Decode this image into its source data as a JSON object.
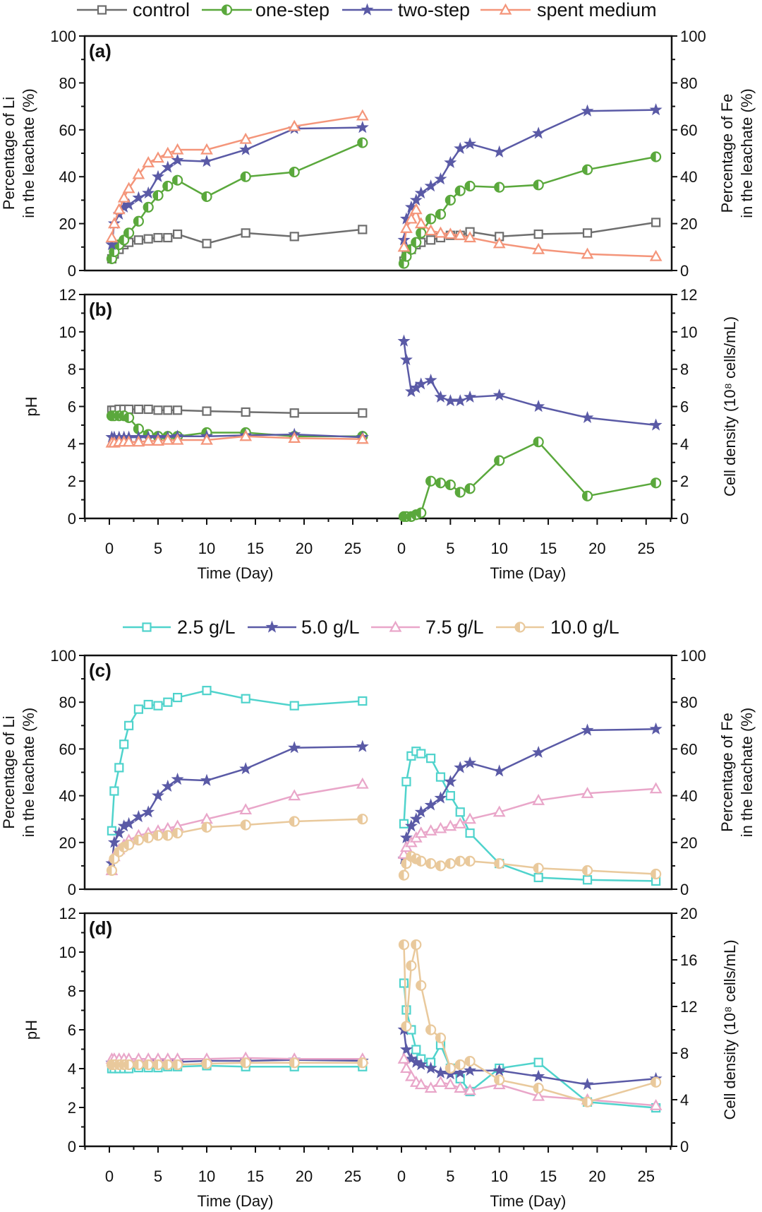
{
  "legends": [
    {
      "id": "legend-treatment",
      "items": [
        {
          "name": "control",
          "color": "#6e6e6e",
          "marker": "square"
        },
        {
          "name": "one-step",
          "color": "#5aa83c",
          "marker": "half-circle"
        },
        {
          "name": "two-step",
          "color": "#5a5aa6",
          "marker": "star"
        },
        {
          "name": "spent medium",
          "color": "#f4957a",
          "marker": "triangle"
        }
      ]
    },
    {
      "id": "legend-pulp-density",
      "items": [
        {
          "name": "2.5 g/L",
          "color": "#4fd3cc",
          "marker": "square"
        },
        {
          "name": "5.0 g/L",
          "color": "#5a5aa6",
          "marker": "star"
        },
        {
          "name": "7.5 g/L",
          "color": "#e9a6c9",
          "marker": "triangle"
        },
        {
          "name": "10.0 g/L",
          "color": "#e9c99c",
          "marker": "half-circle"
        }
      ]
    }
  ],
  "chart_data": [
    {
      "panel": "(a)",
      "type": "line",
      "legend": 0,
      "x": [
        0.25,
        0.5,
        1,
        1.5,
        2,
        3,
        4,
        5,
        6,
        7,
        10,
        14,
        19,
        26
      ],
      "xlabel": "",
      "xticks": [],
      "ylabel_left": [
        "Percentage of  Li",
        "in the leachate (%)"
      ],
      "ylabel_right": [
        "Percentage of  Fe",
        "in the leachate (%)"
      ],
      "ylim_left": [
        0,
        100
      ],
      "yticks_left": [
        0,
        20,
        40,
        60,
        80,
        100
      ],
      "ylim_right": [
        0,
        100
      ],
      "yticks_right": [
        0,
        20,
        40,
        60,
        80,
        100
      ],
      "left_series": [
        {
          "name": "control",
          "values": [
            5,
            7,
            9,
            11,
            12,
            13,
            13.5,
            14,
            14,
            15.5,
            11.5,
            16,
            14.5,
            17.5
          ]
        },
        {
          "name": "one-step",
          "values": [
            5,
            8,
            11,
            13,
            16,
            21,
            27,
            32,
            36,
            38.5,
            31.5,
            40,
            42,
            54.5
          ]
        },
        {
          "name": "two-step",
          "values": [
            11,
            20,
            24,
            27,
            28,
            31,
            33,
            40,
            44,
            47,
            46.5,
            51.5,
            60.5,
            61
          ]
        },
        {
          "name": "spent medium",
          "values": [
            14,
            20,
            26,
            31,
            35,
            41,
            46,
            48,
            50,
            51.5,
            51.5,
            56,
            61.5,
            66
          ]
        }
      ],
      "right_series": [
        {
          "name": "control",
          "values": [
            4,
            7,
            9,
            11,
            12,
            13,
            14,
            15,
            15,
            16.5,
            14.5,
            15.5,
            16,
            20.5
          ]
        },
        {
          "name": "one-step",
          "values": [
            3,
            6,
            9,
            12,
            16,
            22,
            24,
            30,
            34,
            36,
            35.5,
            36.5,
            43,
            48.5
          ]
        },
        {
          "name": "two-step",
          "values": [
            13,
            22,
            27,
            30,
            33,
            36,
            39,
            46,
            52,
            54,
            50.5,
            58.5,
            68,
            68.5
          ]
        },
        {
          "name": "spent medium",
          "values": [
            10,
            18,
            22,
            26,
            20,
            17,
            16,
            15.5,
            15,
            14,
            11.5,
            9,
            7,
            6
          ]
        }
      ]
    },
    {
      "panel": "(b)",
      "type": "line",
      "legend": 0,
      "x": [
        0.25,
        0.5,
        1,
        1.5,
        2,
        3,
        4,
        5,
        6,
        7,
        10,
        14,
        19,
        26
      ],
      "xlabel": "Time (Day)",
      "xticks": [
        0,
        5,
        10,
        15,
        20,
        25
      ],
      "ylabel_left": [
        "pH"
      ],
      "ylabel_right": [
        "Cell density (10⁸ cells/mL)"
      ],
      "ylim_left": [
        0,
        12
      ],
      "yticks_left": [
        0,
        2,
        4,
        6,
        8,
        10,
        12
      ],
      "ylim_right": [
        0,
        12
      ],
      "yticks_right": [
        0,
        2,
        4,
        6,
        8,
        10,
        12
      ],
      "left_series": [
        {
          "name": "control",
          "values": [
            5.8,
            5.8,
            5.85,
            5.85,
            5.85,
            5.85,
            5.85,
            5.8,
            5.8,
            5.8,
            5.75,
            5.7,
            5.65,
            5.65
          ]
        },
        {
          "name": "one-step",
          "values": [
            5.5,
            5.5,
            5.5,
            5.5,
            5.4,
            4.8,
            4.5,
            4.4,
            4.4,
            4.4,
            4.6,
            4.6,
            4.4,
            4.4
          ]
        },
        {
          "name": "two-step",
          "values": [
            4.35,
            4.35,
            4.35,
            4.35,
            4.35,
            4.35,
            4.35,
            4.35,
            4.35,
            4.4,
            4.4,
            4.45,
            4.5,
            4.35
          ]
        },
        {
          "name": "spent medium",
          "values": [
            4.05,
            4.05,
            4.1,
            4.1,
            4.1,
            4.1,
            4.15,
            4.15,
            4.2,
            4.2,
            4.2,
            4.4,
            4.3,
            4.25
          ]
        }
      ],
      "right_series": [
        {
          "name": "one-step",
          "values": [
            0.1,
            0.1,
            0.1,
            0.2,
            0.3,
            2.0,
            1.9,
            1.8,
            1.4,
            1.6,
            3.1,
            4.1,
            1.2,
            1.9
          ]
        },
        {
          "name": "two-step",
          "values": [
            9.5,
            8.5,
            6.8,
            7.0,
            7.2,
            7.4,
            6.5,
            6.3,
            6.3,
            6.5,
            6.6,
            6.0,
            5.4,
            5.0
          ]
        }
      ]
    },
    {
      "panel": "(c)",
      "type": "line",
      "legend": 1,
      "x": [
        0.25,
        0.5,
        1,
        1.5,
        2,
        3,
        4,
        5,
        6,
        7,
        10,
        14,
        19,
        26
      ],
      "xlabel": "",
      "xticks": [],
      "ylabel_left": [
        "Percentage of  Li",
        "in the leachate (%)"
      ],
      "ylabel_right": [
        "Percentage of  Fe",
        "in the leachate (%)"
      ],
      "ylim_left": [
        0,
        100
      ],
      "yticks_left": [
        0,
        20,
        40,
        60,
        80,
        100
      ],
      "ylim_right": [
        0,
        100
      ],
      "yticks_right": [
        0,
        20,
        40,
        60,
        80,
        100
      ],
      "left_series": [
        {
          "name": "2.5 g/L",
          "values": [
            25,
            42,
            52,
            62,
            70,
            77,
            79,
            78.5,
            80,
            82,
            85,
            81.5,
            78.5,
            80.5
          ]
        },
        {
          "name": "5.0 g/L",
          "values": [
            11,
            20,
            24,
            27,
            28,
            31,
            33,
            40,
            44,
            47,
            46.5,
            51.5,
            60.5,
            61
          ]
        },
        {
          "name": "7.5 g/L",
          "values": [
            8,
            14,
            17,
            19,
            21,
            23,
            24,
            25,
            26,
            27,
            30,
            34,
            40,
            45
          ]
        },
        {
          "name": "10.0 g/L",
          "values": [
            8,
            13,
            16,
            18,
            19,
            21,
            22,
            23,
            23,
            24,
            26.5,
            27.5,
            29,
            30
          ]
        }
      ],
      "right_series": [
        {
          "name": "2.5 g/L",
          "values": [
            28,
            46,
            57,
            59,
            58,
            56,
            48,
            40,
            33,
            24,
            11,
            5,
            4,
            3.5
          ]
        },
        {
          "name": "5.0 g/L",
          "values": [
            13,
            22,
            27,
            30,
            33,
            36,
            39,
            46,
            52,
            54,
            50.5,
            58.5,
            68,
            68.5
          ]
        },
        {
          "name": "7.5 g/L",
          "values": [
            15,
            18,
            20,
            22,
            24,
            25,
            26,
            27,
            28,
            30,
            33,
            38,
            41,
            43
          ]
        },
        {
          "name": "10.0 g/L",
          "values": [
            6,
            11,
            14,
            13,
            12,
            11,
            10,
            11,
            12,
            12,
            11,
            9,
            8,
            6.5
          ]
        }
      ]
    },
    {
      "panel": "(d)",
      "type": "line",
      "legend": 1,
      "x": [
        0.25,
        0.5,
        1,
        1.5,
        2,
        3,
        4,
        5,
        6,
        7,
        10,
        14,
        19,
        26
      ],
      "xlabel": "Time (Day)",
      "xticks": [
        0,
        5,
        10,
        15,
        20,
        25
      ],
      "ylabel_left": [
        "pH"
      ],
      "ylabel_right": [
        "Cell density (10⁸ cells/mL)"
      ],
      "ylim_left": [
        0,
        12
      ],
      "yticks_left": [
        0,
        2,
        4,
        6,
        8,
        10,
        12
      ],
      "ylim_right": [
        0,
        20
      ],
      "yticks_right": [
        0,
        4,
        8,
        12,
        16,
        20
      ],
      "left_series": [
        {
          "name": "2.5 g/L",
          "values": [
            4.0,
            4.0,
            4.0,
            4.0,
            4.0,
            4.05,
            4.05,
            4.05,
            4.1,
            4.1,
            4.15,
            4.1,
            4.1,
            4.1
          ]
        },
        {
          "name": "5.0 g/L",
          "values": [
            4.3,
            4.3,
            4.3,
            4.3,
            4.3,
            4.3,
            4.3,
            4.35,
            4.35,
            4.35,
            4.4,
            4.4,
            4.45,
            4.4
          ]
        },
        {
          "name": "7.5 g/L",
          "values": [
            4.5,
            4.5,
            4.5,
            4.5,
            4.5,
            4.5,
            4.5,
            4.5,
            4.5,
            4.5,
            4.5,
            4.55,
            4.5,
            4.5
          ]
        },
        {
          "name": "10.0 g/L",
          "values": [
            4.2,
            4.2,
            4.2,
            4.2,
            4.2,
            4.2,
            4.2,
            4.2,
            4.2,
            4.2,
            4.25,
            4.3,
            4.3,
            4.3
          ]
        }
      ],
      "right_series": [
        {
          "name": "2.5 g/L",
          "values": [
            14,
            11.7,
            10,
            8.3,
            7.5,
            7.2,
            8.7,
            6.7,
            5.8,
            4.7,
            6.7,
            7.2,
            3.8,
            3.3
          ]
        },
        {
          "name": "5.0 g/L",
          "values": [
            10,
            8.3,
            7.5,
            7.2,
            7,
            6.7,
            6.3,
            6.2,
            6.3,
            6.5,
            6.5,
            6,
            5.3,
            5.8
          ]
        },
        {
          "name": "7.5 g/L",
          "values": [
            7.5,
            6.7,
            6,
            5.5,
            5.3,
            5,
            5.5,
            5.3,
            5,
            4.8,
            5.3,
            4.3,
            4,
            3.5
          ]
        },
        {
          "name": "10.0 g/L",
          "values": [
            17.3,
            10.3,
            15.5,
            17.3,
            13.8,
            10,
            9.3,
            6.7,
            7,
            7.3,
            5.7,
            5,
            3.8,
            5.5
          ]
        }
      ]
    }
  ]
}
